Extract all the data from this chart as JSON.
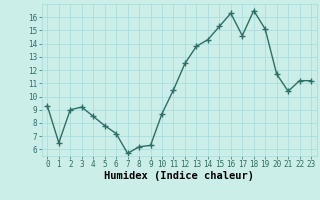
{
  "x": [
    0,
    1,
    2,
    3,
    4,
    5,
    6,
    7,
    8,
    9,
    10,
    11,
    12,
    13,
    14,
    15,
    16,
    17,
    18,
    19,
    20,
    21,
    22,
    23
  ],
  "y": [
    9.3,
    6.5,
    9.0,
    9.2,
    8.5,
    7.8,
    7.2,
    5.7,
    6.2,
    6.3,
    8.7,
    10.5,
    12.5,
    13.8,
    14.3,
    15.3,
    16.3,
    14.6,
    16.5,
    15.1,
    11.7,
    10.4,
    11.2,
    11.2
  ],
  "line_color": "#2d6e65",
  "marker": "+",
  "markersize": 4,
  "linewidth": 1.0,
  "bg_color": "#cceee8",
  "grid_color": "#aadddd",
  "xlabel": "Humidex (Indice chaleur)",
  "xlim": [
    -0.5,
    23.5
  ],
  "ylim": [
    5.5,
    17.0
  ],
  "yticks": [
    6,
    7,
    8,
    9,
    10,
    11,
    12,
    13,
    14,
    15,
    16
  ],
  "xticks": [
    0,
    1,
    2,
    3,
    4,
    5,
    6,
    7,
    8,
    9,
    10,
    11,
    12,
    13,
    14,
    15,
    16,
    17,
    18,
    19,
    20,
    21,
    22,
    23
  ],
  "tick_fontsize": 5.5,
  "xlabel_fontsize": 7.5
}
